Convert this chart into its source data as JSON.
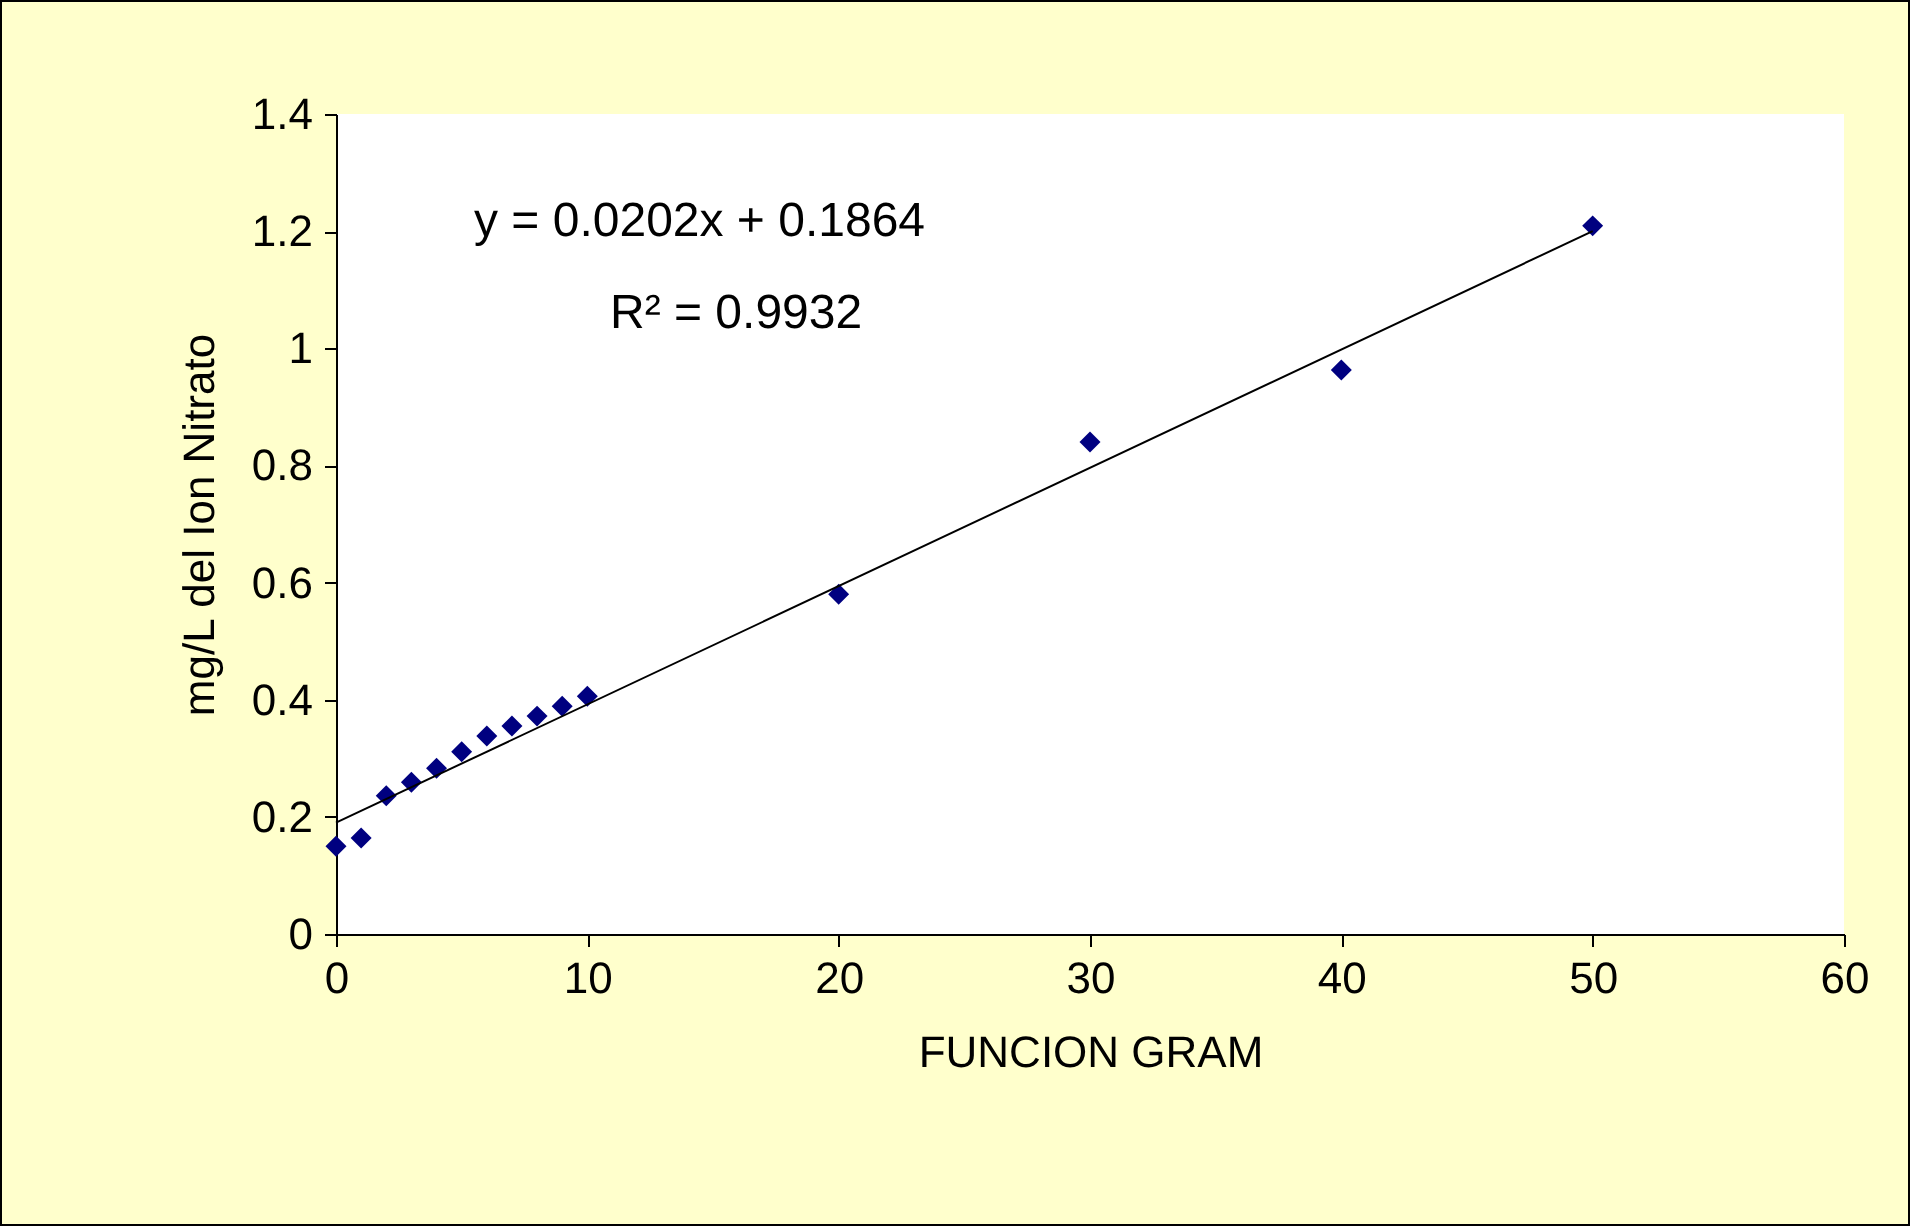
{
  "chart_data": {
    "type": "scatter",
    "xlabel": "FUNCION GRAM",
    "ylabel": "mg/L del Ion Nitrato",
    "annotations": [
      "y = 0.0202x + 0.1864",
      "R² = 0.9932"
    ],
    "xlim": [
      0,
      60
    ],
    "xticks": [
      0,
      10,
      20,
      30,
      40,
      50,
      60
    ],
    "ylim": [
      0,
      1.4
    ],
    "yticks": [
      0,
      0.2,
      0.4,
      0.6,
      0.8,
      1,
      1.2,
      1.4
    ],
    "grid": false,
    "marker": "diamond",
    "x": [
      0,
      1,
      2,
      3,
      4,
      5,
      6,
      7,
      8,
      9,
      10,
      20,
      30,
      40,
      50
    ],
    "series": [
      {
        "color": "#000080",
        "values": [
          0.15,
          0.164,
          0.236,
          0.259,
          0.283,
          0.311,
          0.338,
          0.355,
          0.372,
          0.389,
          0.406,
          0.58,
          0.84,
          0.963,
          1.209
        ]
      },
      {
        "type": "line",
        "color": "#000000",
        "marker": "none",
        "x": [
          0,
          50
        ],
        "values": [
          0.19,
          1.2
        ]
      }
    ]
  }
}
